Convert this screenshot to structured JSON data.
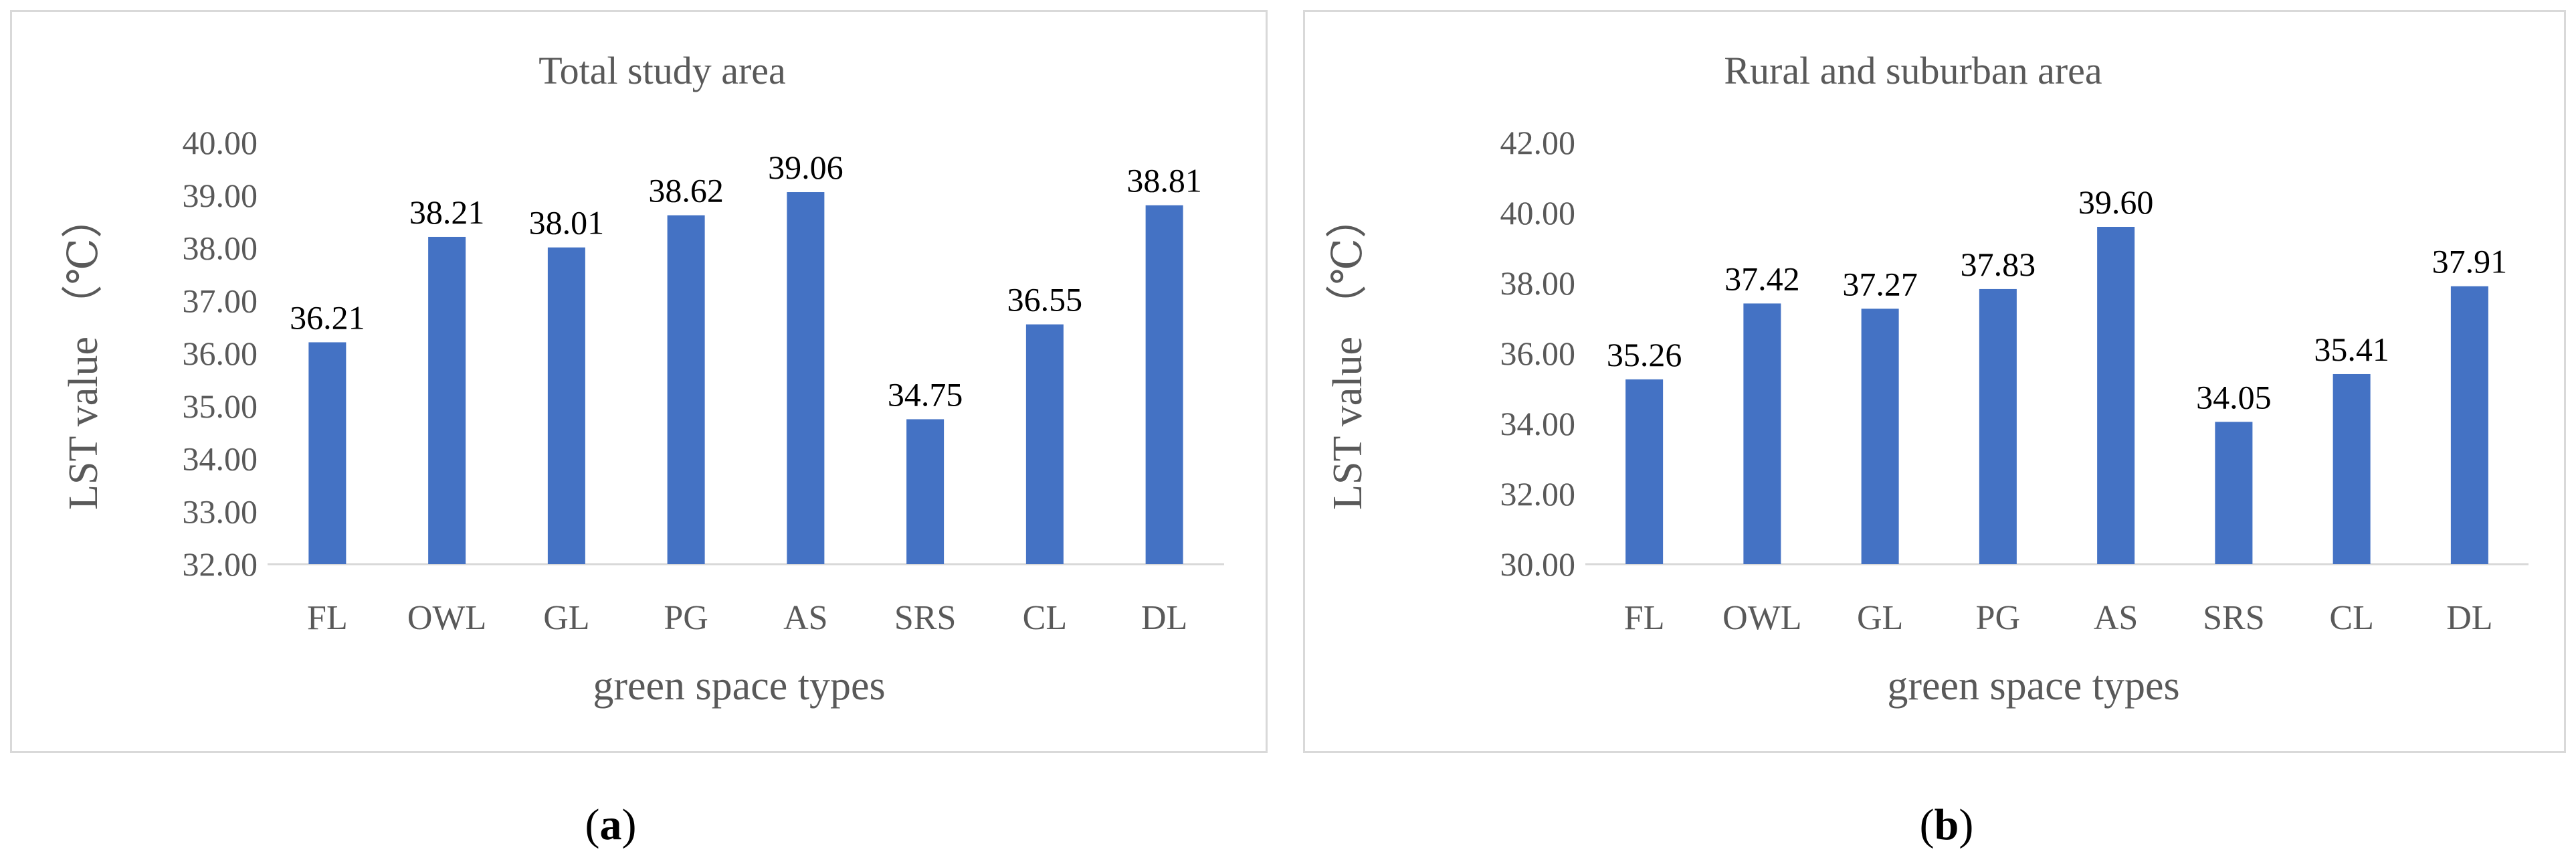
{
  "chart_data": [
    {
      "type": "bar",
      "title": "Total study area",
      "xlabel": "green space types",
      "ylabel": "LST value （℃）",
      "categories": [
        "FL",
        "OWL",
        "GL",
        "PG",
        "AS",
        "SRS",
        "CL",
        "DL"
      ],
      "values": [
        36.21,
        38.21,
        38.01,
        38.62,
        39.06,
        34.75,
        36.55,
        38.81
      ],
      "value_labels": [
        "36.21",
        "38.21",
        "38.01",
        "38.62",
        "39.06",
        "34.75",
        "36.55",
        "38.81"
      ],
      "ylim": [
        32,
        40
      ],
      "yticks": [
        "32.00",
        "33.00",
        "34.00",
        "35.00",
        "36.00",
        "37.00",
        "38.00",
        "39.00",
        "40.00"
      ],
      "grid": false,
      "legend": "none",
      "bar_color": "#4472C4",
      "caption_paren_open": "(",
      "caption_letter": "a",
      "caption_paren_close": ")"
    },
    {
      "type": "bar",
      "title": "Rural and  suburban area",
      "xlabel": "green space types",
      "ylabel": "LST value （℃）",
      "categories": [
        "FL",
        "OWL",
        "GL",
        "PG",
        "AS",
        "SRS",
        "CL",
        "DL"
      ],
      "values": [
        35.26,
        37.42,
        37.27,
        37.83,
        39.6,
        34.05,
        35.41,
        37.91
      ],
      "value_labels": [
        "35.26",
        "37.42",
        "37.27",
        "37.83",
        "39.60",
        "34.05",
        "35.41",
        "37.91"
      ],
      "ylim": [
        30,
        42
      ],
      "yticks": [
        "30.00",
        "32.00",
        "34.00",
        "36.00",
        "38.00",
        "40.00",
        "42.00"
      ],
      "grid": false,
      "legend": "none",
      "bar_color": "#4472C4",
      "caption_paren_open": "(",
      "caption_letter": "b",
      "caption_paren_close": ")"
    }
  ]
}
